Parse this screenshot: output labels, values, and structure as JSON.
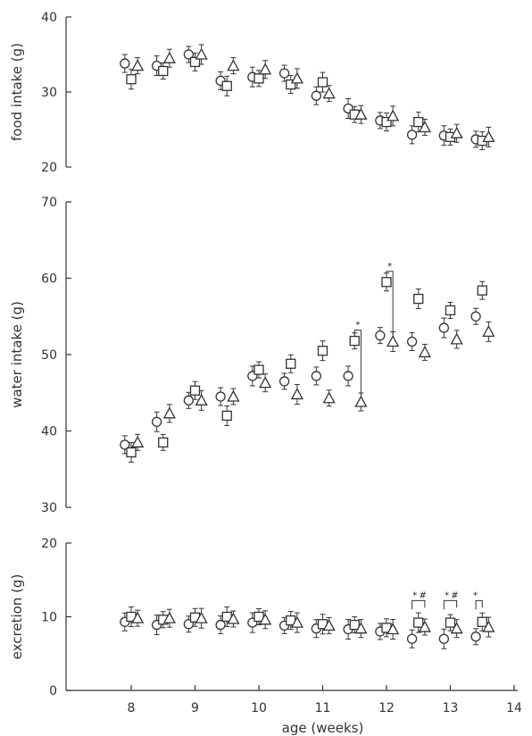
{
  "chart_data": [
    {
      "type": "scatter",
      "panel": "food",
      "ylabel": "food intake (g)",
      "xlabel": "",
      "ylim": [
        20,
        40
      ],
      "yticks": [
        20,
        30,
        40
      ],
      "xlim": [
        7.5,
        14
      ],
      "grid": false,
      "series": [
        {
          "marker": "circle",
          "x": [
            7.9,
            8.4,
            8.9,
            9.4,
            9.9,
            10.4,
            10.9,
            11.4,
            11.9,
            12.4,
            12.9,
            13.4
          ],
          "values": [
            33.8,
            33.5,
            35.0,
            31.5,
            32.0,
            32.5,
            29.5,
            27.8,
            26.2,
            24.3,
            24.2,
            23.7
          ]
        },
        {
          "marker": "square",
          "x": [
            8.0,
            8.5,
            9.0,
            9.5,
            10.0,
            10.5,
            11.0,
            11.5,
            12.0,
            12.5,
            13.0,
            13.5
          ],
          "values": [
            31.7,
            32.8,
            34.0,
            30.8,
            31.8,
            31.0,
            31.3,
            27.0,
            26.0,
            26.0,
            24.0,
            23.5
          ]
        },
        {
          "marker": "triangle",
          "x": [
            8.1,
            8.6,
            9.1,
            9.6,
            10.1,
            10.6,
            11.1,
            11.6,
            12.1,
            12.6,
            13.1,
            13.6
          ],
          "values": [
            33.5,
            34.5,
            35.0,
            33.5,
            33.0,
            31.8,
            29.8,
            27.0,
            26.8,
            25.3,
            24.5,
            24.0
          ]
        }
      ]
    },
    {
      "type": "scatter",
      "panel": "water",
      "ylabel": "water intake (g)",
      "xlabel": "",
      "ylim": [
        30,
        70
      ],
      "yticks": [
        30,
        40,
        50,
        60,
        70
      ],
      "xlim": [
        7.5,
        14
      ],
      "grid": false,
      "annotations": [
        "*",
        "*"
      ],
      "series": [
        {
          "marker": "circle",
          "x": [
            7.9,
            8.4,
            8.9,
            9.4,
            9.9,
            10.4,
            10.9,
            11.4,
            11.9,
            12.4,
            12.9,
            13.4
          ],
          "values": [
            38.2,
            41.2,
            44.0,
            44.5,
            47.2,
            46.5,
            47.2,
            47.2,
            52.5,
            51.7,
            53.5,
            55.0
          ]
        },
        {
          "marker": "square",
          "x": [
            8.0,
            8.5,
            9.0,
            9.5,
            10.0,
            10.5,
            11.0,
            11.5,
            12.0,
            12.5,
            13.0,
            13.5
          ],
          "values": [
            37.2,
            38.5,
            45.3,
            42.0,
            48.0,
            48.8,
            50.5,
            51.8,
            59.5,
            57.3,
            55.8,
            58.4
          ]
        },
        {
          "marker": "triangle",
          "x": [
            8.1,
            8.6,
            9.1,
            9.6,
            10.1,
            10.6,
            11.1,
            11.6,
            12.1,
            12.6,
            13.1,
            13.6
          ],
          "values": [
            38.5,
            42.3,
            44.0,
            44.5,
            46.3,
            44.8,
            44.3,
            43.8,
            51.7,
            50.3,
            52.0,
            53.0
          ]
        }
      ]
    },
    {
      "type": "scatter",
      "panel": "excretion",
      "ylabel": "excretion (g)",
      "xlabel": "age (weeks)",
      "ylim": [
        0,
        20
      ],
      "yticks": [
        0,
        10,
        20
      ],
      "xlim": [
        7.5,
        14
      ],
      "xticks": [
        8,
        9,
        10,
        11,
        12,
        13,
        14
      ],
      "grid": false,
      "annotations": [
        "*",
        "#",
        "*",
        "#",
        "*"
      ],
      "series": [
        {
          "marker": "circle",
          "x": [
            7.9,
            8.4,
            8.9,
            9.4,
            9.9,
            10.4,
            10.9,
            11.4,
            11.9,
            12.4,
            12.9,
            13.4
          ],
          "values": [
            9.3,
            8.9,
            9.0,
            8.9,
            9.2,
            8.8,
            8.4,
            8.3,
            8.0,
            7.0,
            7.0,
            7.3
          ]
        },
        {
          "marker": "square",
          "x": [
            8.0,
            8.5,
            9.0,
            9.5,
            10.0,
            10.5,
            11.0,
            11.5,
            12.0,
            12.5,
            13.0,
            13.5
          ],
          "values": [
            10.0,
            9.6,
            9.9,
            10.0,
            10.0,
            9.5,
            9.0,
            8.9,
            8.5,
            9.2,
            9.2,
            9.3
          ]
        },
        {
          "marker": "triangle",
          "x": [
            8.1,
            8.6,
            9.1,
            9.6,
            10.1,
            10.6,
            11.1,
            11.6,
            12.1,
            12.6,
            13.1,
            13.6
          ],
          "values": [
            9.8,
            9.8,
            9.8,
            9.7,
            9.6,
            9.2,
            8.8,
            8.4,
            8.3,
            8.6,
            8.4,
            8.6
          ]
        }
      ]
    }
  ]
}
